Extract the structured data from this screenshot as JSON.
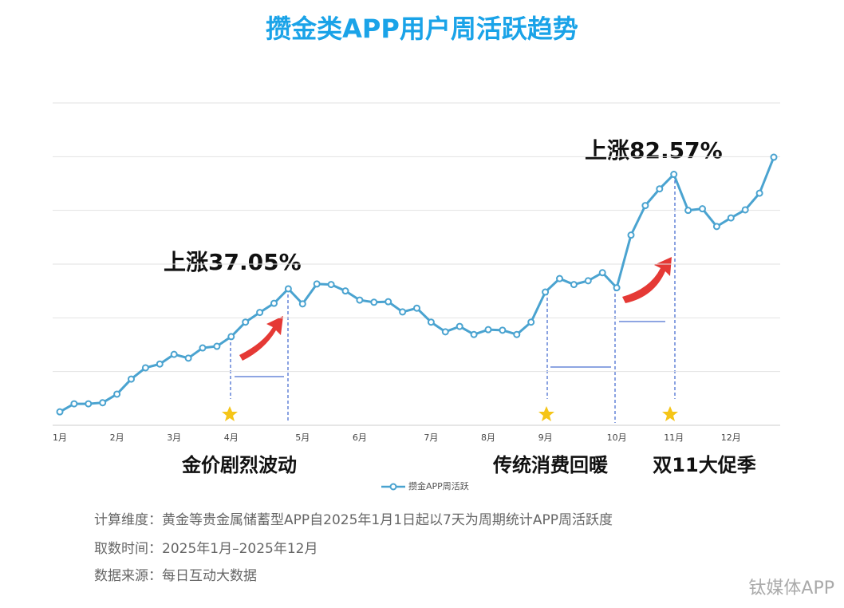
{
  "chart_data": {
    "type": "line",
    "title": "攒金类APP用户周活跃趋势",
    "categories": [
      "1月",
      null,
      null,
      null,
      "2月",
      null,
      null,
      null,
      "3月",
      null,
      null,
      null,
      "4月",
      null,
      null,
      null,
      null,
      "5月",
      null,
      null,
      null,
      "6月",
      null,
      null,
      null,
      null,
      "7月",
      null,
      null,
      null,
      "8月",
      null,
      null,
      null,
      "9月",
      null,
      null,
      null,
      null,
      "10月",
      null,
      null,
      null,
      "11月",
      null,
      null,
      null,
      "12月",
      null,
      null,
      null
    ],
    "series": [
      {
        "name": "攒金APP周活跃",
        "color": "#4aa3d0",
        "values": [
          0.25,
          0.4,
          0.4,
          0.42,
          0.58,
          0.86,
          1.07,
          1.14,
          1.32,
          1.25,
          1.44,
          1.47,
          1.65,
          1.92,
          2.1,
          2.27,
          2.54,
          2.26,
          2.63,
          2.62,
          2.5,
          2.33,
          2.29,
          2.3,
          2.11,
          2.18,
          1.92,
          1.74,
          1.84,
          1.69,
          1.78,
          1.77,
          1.69,
          1.92,
          2.48,
          2.73,
          2.62,
          2.69,
          2.84,
          2.56,
          3.54,
          4.09,
          4.4,
          4.67,
          4.0,
          4.03,
          3.7,
          3.86,
          4.01,
          4.32,
          4.99
        ]
      }
    ],
    "ylim": [
      0,
      6
    ],
    "ygrid": [
      1,
      2,
      3,
      4,
      5,
      6
    ],
    "grid": true,
    "annotations": [
      "上涨37.05%",
      "上涨82.57%",
      "金价剧烈波动",
      "传统消费回暖",
      "双11大促季"
    ],
    "footer": [
      "计算维度：黄金等贵金属储蓄型APP自2025年1月1日起以7天为周期统计APP周活跃度",
      "取数时间：2025年1月–2025年12月",
      "数据来源：每日互动大数据"
    ],
    "watermark": "钛媒体APP"
  }
}
